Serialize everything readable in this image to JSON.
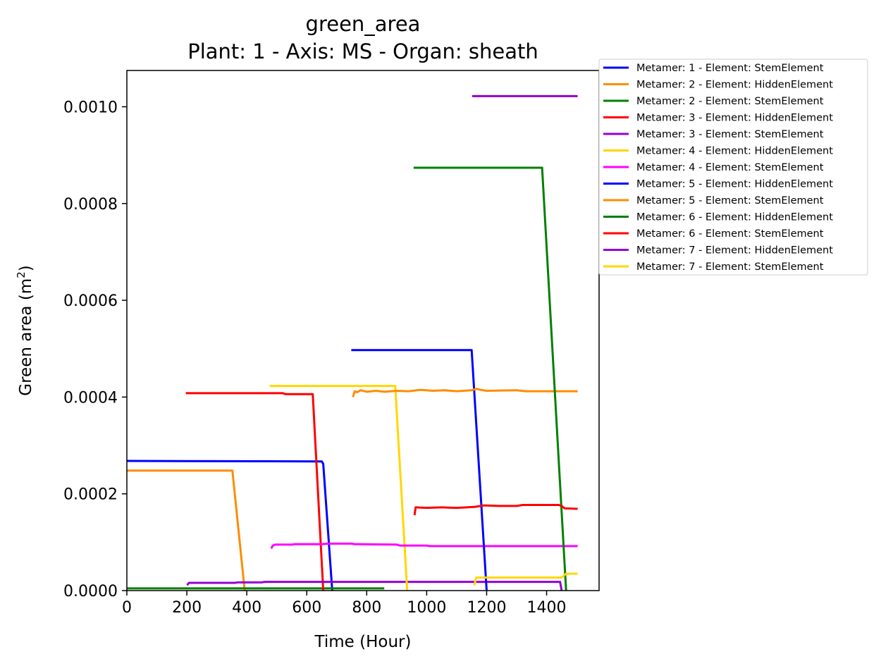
{
  "chart_data": {
    "type": "line",
    "title": "green_area",
    "subtitle": "Plant: 1 - Axis: MS - Organ: sheath",
    "xlabel": "Time (Hour)",
    "ylabel": "Green area (m²)",
    "ylabel_main": "Green area (m",
    "ylabel_sup": "2",
    "ylabel_end": ")",
    "xlim": [
      0,
      1575
    ],
    "ylim": [
      0,
      0.001075
    ],
    "x_ticks": [
      0,
      200,
      400,
      600,
      800,
      1000,
      1200,
      1400
    ],
    "x_tick_labels": [
      "0",
      "200",
      "400",
      "600",
      "800",
      "1000",
      "1200",
      "1400"
    ],
    "y_ticks": [
      0,
      0.0002,
      0.0004,
      0.0006,
      0.0008,
      0.001
    ],
    "y_tick_labels": [
      "0.0000",
      "0.0002",
      "0.0004",
      "0.0006",
      "0.0008",
      "0.0010"
    ],
    "grid": false,
    "legend_position": "outside-top-right",
    "series": [
      {
        "name": "Metamer: 1 - Element: StemElement",
        "color": "#0000ff",
        "points": [
          [
            0,
            0.000268
          ],
          [
            650,
            0.000267
          ],
          [
            655,
            0.000262
          ],
          [
            685,
            0.0
          ]
        ]
      },
      {
        "name": "Metamer: 2 - Element: HiddenElement",
        "color": "#ff8c00",
        "points": [
          [
            0,
            0.000248
          ],
          [
            352,
            0.000248
          ],
          [
            393,
            0.0
          ]
        ]
      },
      {
        "name": "Metamer: 2 - Element: StemElement",
        "color": "#008000",
        "points": [
          [
            0,
            4.5e-06
          ],
          [
            855,
            4.5e-06
          ]
        ]
      },
      {
        "name": "Metamer: 3 - Element: HiddenElement",
        "color": "#ff0000",
        "points": [
          [
            200,
            0.000408
          ],
          [
            520,
            0.000408
          ],
          [
            530,
            0.000406
          ],
          [
            620,
            0.000406
          ],
          [
            655,
            0.0
          ]
        ]
      },
      {
        "name": "Metamer: 3 - Element: StemElement",
        "color": "#9400d3",
        "points": [
          [
            203,
            1.3e-05
          ],
          [
            207,
            1.6e-05
          ],
          [
            360,
            1.6e-05
          ],
          [
            370,
            1.7e-05
          ],
          [
            450,
            1.7e-05
          ],
          [
            460,
            1.8e-05
          ],
          [
            1445,
            1.8e-05
          ],
          [
            1450,
            0.0
          ]
        ]
      },
      {
        "name": "Metamer: 4 - Element: HiddenElement",
        "color": "#ffd700",
        "points": [
          [
            480,
            0.000423
          ],
          [
            895,
            0.000423
          ],
          [
            935,
            0.0
          ]
        ]
      },
      {
        "name": "Metamer: 4 - Element: StemElement",
        "color": "#ff00ff",
        "points": [
          [
            483,
            8.9e-05
          ],
          [
            487,
            9.3e-05
          ],
          [
            495,
            9.5e-05
          ],
          [
            550,
            9.5e-05
          ],
          [
            560,
            9.6e-05
          ],
          [
            650,
            9.6e-05
          ],
          [
            670,
            9.7e-05
          ],
          [
            750,
            9.7e-05
          ],
          [
            760,
            9.6e-05
          ],
          [
            900,
            9.5e-05
          ],
          [
            912,
            9.3e-05
          ],
          [
            1000,
            9.3e-05
          ],
          [
            1010,
            9.2e-05
          ],
          [
            1500,
            9.2e-05
          ]
        ]
      },
      {
        "name": "Metamer: 5 - Element: HiddenElement",
        "color": "#0000ff",
        "points": [
          [
            752,
            0.000497
          ],
          [
            1150,
            0.000497
          ],
          [
            1200,
            0.0
          ]
        ]
      },
      {
        "name": "Metamer: 5 - Element: StemElement",
        "color": "#ff8c00",
        "points": [
          [
            755,
            0.000402
          ],
          [
            760,
            0.000412
          ],
          [
            768,
            0.00041
          ],
          [
            780,
            0.000414
          ],
          [
            800,
            0.000411
          ],
          [
            830,
            0.000413
          ],
          [
            860,
            0.000411
          ],
          [
            900,
            0.000413
          ],
          [
            940,
            0.000412
          ],
          [
            980,
            0.000415
          ],
          [
            1020,
            0.000413
          ],
          [
            1060,
            0.000414
          ],
          [
            1100,
            0.000412
          ],
          [
            1150,
            0.000414
          ],
          [
            1165,
            0.000417
          ],
          [
            1180,
            0.000415
          ],
          [
            1200,
            0.000413
          ],
          [
            1300,
            0.000414
          ],
          [
            1330,
            0.000412
          ],
          [
            1500,
            0.000412
          ]
        ]
      },
      {
        "name": "Metamer: 6 - Element: HiddenElement",
        "color": "#008000",
        "points": [
          [
            960,
            0.000874
          ],
          [
            1385,
            0.000874
          ],
          [
            1465,
            0.0
          ]
        ]
      },
      {
        "name": "Metamer: 6 - Element: StemElement",
        "color": "#ff0000",
        "points": [
          [
            960,
            0.000158
          ],
          [
            963,
            0.000172
          ],
          [
            1000,
            0.000171
          ],
          [
            1050,
            0.000172
          ],
          [
            1100,
            0.000171
          ],
          [
            1160,
            0.000173
          ],
          [
            1190,
            0.000176
          ],
          [
            1240,
            0.000175
          ],
          [
            1300,
            0.000175
          ],
          [
            1320,
            0.000177
          ],
          [
            1440,
            0.000177
          ],
          [
            1450,
            0.000175
          ],
          [
            1460,
            0.00017
          ],
          [
            1500,
            0.000169
          ]
        ]
      },
      {
        "name": "Metamer: 7 - Element: HiddenElement",
        "color": "#9400d3",
        "points": [
          [
            1155,
            0.001022
          ],
          [
            1500,
            0.001022
          ]
        ]
      },
      {
        "name": "Metamer: 7 - Element: StemElement",
        "color": "#ffd700",
        "points": [
          [
            1160,
            1.3e-05
          ],
          [
            1165,
            2.7e-05
          ],
          [
            1450,
            2.7e-05
          ],
          [
            1465,
            3.5e-05
          ],
          [
            1500,
            3.5e-05
          ]
        ]
      }
    ]
  }
}
